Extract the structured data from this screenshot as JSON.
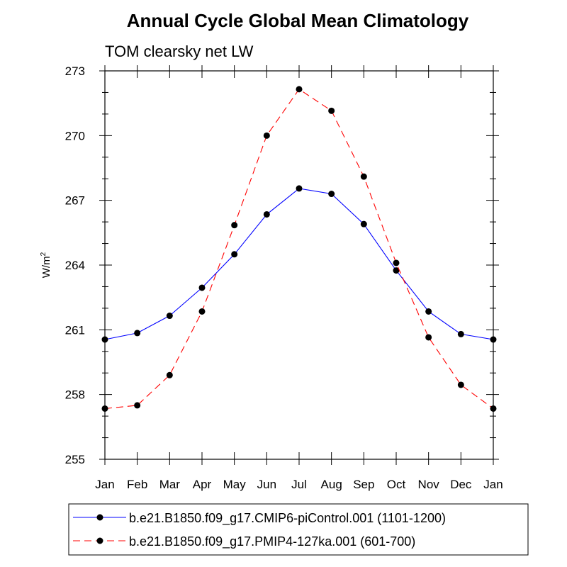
{
  "chart_data": {
    "type": "line",
    "title": "Annual Cycle Global Mean Climatology",
    "subtitle": "TOM clearsky net LW",
    "xlabel": "",
    "ylabel": "W/m",
    "ylabel_superscript": "2",
    "categories": [
      "Jan",
      "Feb",
      "Mar",
      "Apr",
      "May",
      "Jun",
      "Jul",
      "Aug",
      "Sep",
      "Oct",
      "Nov",
      "Dec",
      "Jan"
    ],
    "ylim": [
      255,
      273
    ],
    "yticks": [
      255,
      258,
      261,
      264,
      267,
      270,
      273
    ],
    "ytick_labels": [
      "255",
      "258",
      "261",
      "264",
      "267",
      "270",
      "273"
    ],
    "grid": false,
    "legend_position": "bottom",
    "series": [
      {
        "name": "b.e21.B1850.f09_g17.CMIP6-piControl.001 (1101-1200)",
        "color": "#0000ff",
        "line_style": "solid",
        "marker": "filled-circle",
        "values": [
          260.55,
          260.85,
          261.65,
          262.95,
          264.5,
          266.35,
          267.55,
          267.3,
          265.9,
          263.75,
          261.85,
          260.8,
          260.55
        ]
      },
      {
        "name": "b.e21.B1850.f09_g17.PMIP4-127ka.001 (601-700)",
        "color": "#ff0000",
        "line_style": "dashed",
        "marker": "filled-circle",
        "values": [
          257.35,
          257.5,
          258.9,
          261.85,
          265.85,
          270.0,
          272.15,
          271.15,
          268.1,
          264.1,
          260.65,
          258.45,
          257.35
        ]
      }
    ]
  }
}
